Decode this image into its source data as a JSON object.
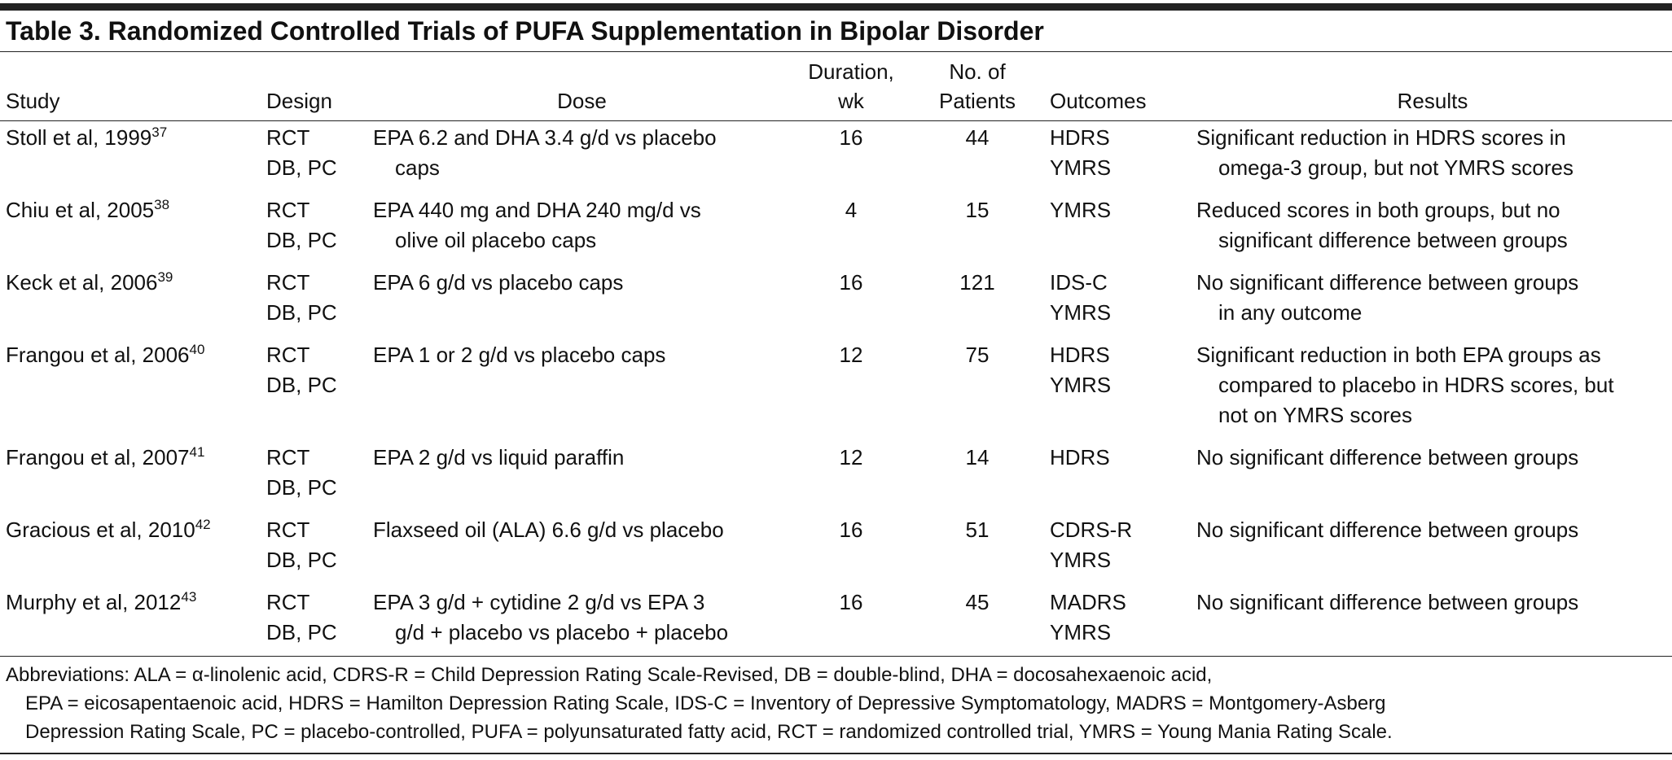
{
  "title": "Table 3. Randomized Controlled Trials of PUFA Supplementation in Bipolar Disorder",
  "table": {
    "columns": [
      [
        "Study"
      ],
      [
        "Design"
      ],
      [
        "Dose"
      ],
      [
        "Duration,",
        "wk"
      ],
      [
        "No. of",
        "Patients"
      ],
      [
        "Outcomes"
      ],
      [
        "Results"
      ]
    ],
    "rows": [
      {
        "study": "Stoll et al, 1999",
        "ref": "37",
        "design": [
          "RCT",
          "DB, PC"
        ],
        "dose": [
          "EPA 6.2 and DHA 3.4 g/d vs placebo",
          "caps"
        ],
        "duration": 16,
        "patients": 44,
        "outcomes": [
          "HDRS",
          "YMRS"
        ],
        "results": [
          "Significant reduction in HDRS scores in",
          "omega-3 group, but not YMRS scores"
        ]
      },
      {
        "study": "Chiu et al, 2005",
        "ref": "38",
        "design": [
          "RCT",
          "DB, PC"
        ],
        "dose": [
          "EPA 440 mg and DHA 240 mg/d vs",
          "olive oil placebo caps"
        ],
        "duration": 4,
        "patients": 15,
        "outcomes": [
          "YMRS"
        ],
        "results": [
          "Reduced scores in both groups, but no",
          "significant difference between groups"
        ]
      },
      {
        "study": "Keck et al, 2006",
        "ref": "39",
        "design": [
          "RCT",
          "DB, PC"
        ],
        "dose": [
          "EPA 6 g/d vs placebo caps"
        ],
        "duration": 16,
        "patients": 121,
        "outcomes": [
          "IDS-C",
          "YMRS"
        ],
        "results": [
          "No significant difference between groups",
          "in any outcome"
        ]
      },
      {
        "study": "Frangou et al, 2006",
        "ref": "40",
        "design": [
          "RCT",
          "DB, PC"
        ],
        "dose": [
          "EPA 1 or 2 g/d vs placebo caps"
        ],
        "duration": 12,
        "patients": 75,
        "outcomes": [
          "HDRS",
          "YMRS"
        ],
        "results": [
          "Significant reduction in both EPA groups as",
          "compared to placebo in HDRS scores, but",
          "not on YMRS scores"
        ]
      },
      {
        "study": "Frangou et al, 2007",
        "ref": "41",
        "design": [
          "RCT",
          "DB, PC"
        ],
        "dose": [
          "EPA 2 g/d vs liquid paraffin"
        ],
        "duration": 12,
        "patients": 14,
        "outcomes": [
          "HDRS"
        ],
        "results": [
          "No significant difference between groups"
        ]
      },
      {
        "study": "Gracious et al, 2010",
        "ref": "42",
        "design": [
          "RCT",
          "DB, PC"
        ],
        "dose": [
          "Flaxseed oil (ALA) 6.6 g/d vs placebo"
        ],
        "duration": 16,
        "patients": 51,
        "outcomes": [
          "CDRS-R",
          "YMRS"
        ],
        "results": [
          "No significant difference between groups"
        ]
      },
      {
        "study": "Murphy et al, 2012",
        "ref": "43",
        "design": [
          "RCT",
          "DB, PC"
        ],
        "dose": [
          "EPA 3 g/d + cytidine 2 g/d vs EPA 3",
          "g/d + placebo vs placebo + placebo"
        ],
        "duration": 16,
        "patients": 45,
        "outcomes": [
          "MADRS",
          "YMRS"
        ],
        "results": [
          "No significant difference between groups"
        ]
      }
    ]
  },
  "footnote": [
    "Abbreviations: ALA = α-linolenic acid, CDRS-R = Child Depression Rating Scale-Revised, DB = double-blind, DHA = docosahexaenoic acid,",
    "EPA = eicosapentaenoic acid, HDRS = Hamilton Depression Rating Scale, IDS-C = Inventory of Depressive Symptomatology, MADRS = Montgomery-Asberg",
    "Depression Rating Scale, PC = placebo-controlled, PUFA = polyunsaturated fatty acid, RCT = randomized controlled trial, YMRS = Young Mania Rating Scale."
  ]
}
